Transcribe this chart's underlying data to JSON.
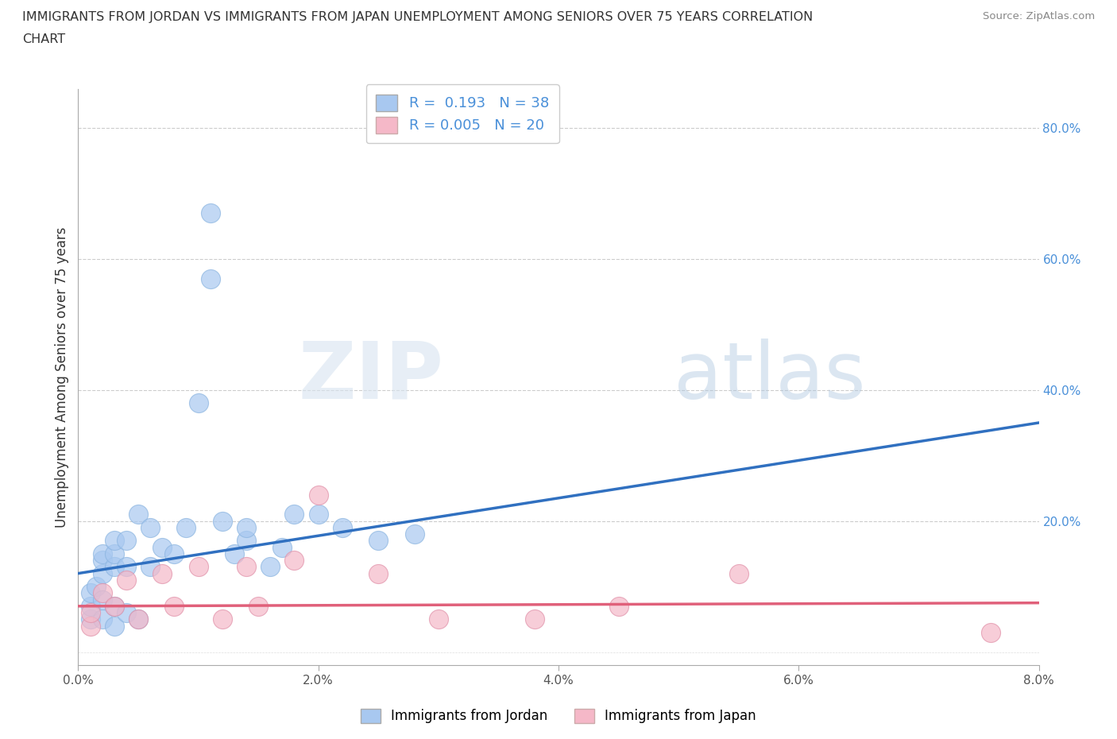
{
  "title_line1": "IMMIGRANTS FROM JORDAN VS IMMIGRANTS FROM JAPAN UNEMPLOYMENT AMONG SENIORS OVER 75 YEARS CORRELATION",
  "title_line2": "CHART",
  "source": "Source: ZipAtlas.com",
  "xlabel_label": "Immigrants from Jordan",
  "ylabel_label": "Unemployment Among Seniors over 75 years",
  "x_label_bottom": "Immigrants from Japan",
  "xlim": [
    0.0,
    0.08
  ],
  "ylim": [
    -0.02,
    0.86
  ],
  "x_ticks": [
    0.0,
    0.02,
    0.04,
    0.06,
    0.08
  ],
  "x_tick_labels": [
    "0.0%",
    "2.0%",
    "4.0%",
    "6.0%",
    "8.0%"
  ],
  "y_ticks_right": [
    0.2,
    0.4,
    0.6,
    0.8
  ],
  "y_tick_labels_right": [
    "20.0%",
    "40.0%",
    "60.0%",
    "80.0%"
  ],
  "jordan_R": 0.193,
  "jordan_N": 38,
  "japan_R": 0.005,
  "japan_N": 20,
  "jordan_color": "#a8c8f0",
  "japan_color": "#f5b8c8",
  "jordan_line_color": "#3070c0",
  "japan_line_color": "#e0607a",
  "background_color": "#ffffff",
  "jordan_x": [
    0.001,
    0.001,
    0.001,
    0.0015,
    0.002,
    0.002,
    0.002,
    0.002,
    0.002,
    0.003,
    0.003,
    0.003,
    0.003,
    0.003,
    0.004,
    0.004,
    0.004,
    0.005,
    0.005,
    0.006,
    0.006,
    0.007,
    0.008,
    0.009,
    0.01,
    0.011,
    0.011,
    0.012,
    0.013,
    0.014,
    0.014,
    0.016,
    0.017,
    0.018,
    0.02,
    0.022,
    0.025,
    0.028
  ],
  "jordan_y": [
    0.05,
    0.07,
    0.09,
    0.1,
    0.05,
    0.08,
    0.12,
    0.14,
    0.15,
    0.04,
    0.07,
    0.13,
    0.15,
    0.17,
    0.06,
    0.13,
    0.17,
    0.05,
    0.21,
    0.13,
    0.19,
    0.16,
    0.15,
    0.19,
    0.38,
    0.57,
    0.67,
    0.2,
    0.15,
    0.17,
    0.19,
    0.13,
    0.16,
    0.21,
    0.21,
    0.19,
    0.17,
    0.18
  ],
  "japan_x": [
    0.001,
    0.001,
    0.002,
    0.003,
    0.004,
    0.005,
    0.007,
    0.008,
    0.01,
    0.012,
    0.014,
    0.015,
    0.018,
    0.02,
    0.025,
    0.03,
    0.038,
    0.045,
    0.055,
    0.076
  ],
  "japan_y": [
    0.04,
    0.06,
    0.09,
    0.07,
    0.11,
    0.05,
    0.12,
    0.07,
    0.13,
    0.05,
    0.13,
    0.07,
    0.14,
    0.24,
    0.12,
    0.05,
    0.05,
    0.07,
    0.12,
    0.03
  ],
  "jordan_line_x0": 0.0,
  "jordan_line_y0": 0.12,
  "jordan_line_x1": 0.08,
  "jordan_line_y1": 0.35,
  "japan_line_x0": 0.0,
  "japan_line_y0": 0.07,
  "japan_line_x1": 0.08,
  "japan_line_y1": 0.075
}
